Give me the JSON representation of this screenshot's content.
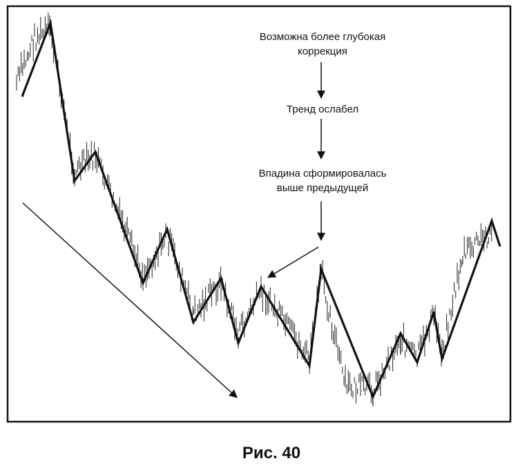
{
  "annotations": [
    {
      "lines": [
        "Возможна более глубокая",
        "коррекция"
      ]
    },
    {
      "lines": [
        "Тренд ослабел"
      ]
    },
    {
      "lines": [
        "Впадина сформировалась",
        "выше предыдущей"
      ]
    }
  ],
  "caption": "Рис. 40"
}
